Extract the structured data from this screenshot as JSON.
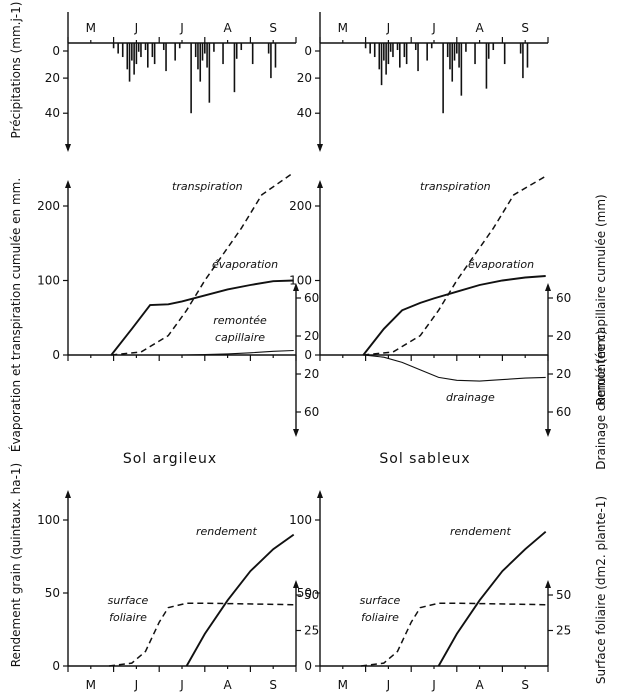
{
  "figure": {
    "soil_left": "Sol argileux",
    "soil_right": "Sol sableux",
    "ylabel_precip": "Précipitations (mm.j-1)",
    "ylabel_et": "Évaporation et transpiration cumulée en mm.",
    "ylabel_capillaire": "Remontée capillaire cumulée (mm)",
    "ylabel_drainage": "Drainage cumulé (mm)",
    "ylabel_rendement": "Rendement grain (quintaux. ha-1)",
    "ylabel_surface": "Surface foliaire (dm2. plante-1)",
    "months": [
      "M",
      "J",
      "J",
      "A",
      "S"
    ]
  },
  "chart_data": [
    {
      "type": "bar",
      "panel": "precipitations-argileux",
      "title": "",
      "ylabel": "Précipitations (mm.j-1)",
      "ylim": [
        0,
        50
      ],
      "y_inverted": true,
      "yticks": [
        20,
        40
      ],
      "x_month_labels": [
        "M",
        "J",
        "J",
        "A",
        "S"
      ],
      "x": [
        1.0,
        1.1,
        1.2,
        1.3,
        1.35,
        1.4,
        1.45,
        1.5,
        1.55,
        1.6,
        1.7,
        1.75,
        1.85,
        1.9,
        2.1,
        2.15,
        2.35,
        2.45,
        2.7,
        2.8,
        2.85,
        2.9,
        2.95,
        3.0,
        3.05,
        3.1,
        3.2,
        3.4,
        3.65,
        3.7,
        3.8,
        4.05,
        4.4,
        4.45,
        4.55
      ],
      "values": [
        3,
        6,
        8,
        15,
        22,
        10,
        18,
        12,
        5,
        8,
        4,
        14,
        8,
        12,
        4,
        16,
        10,
        3,
        40,
        8,
        15,
        22,
        10,
        6,
        14,
        34,
        5,
        12,
        28,
        9,
        4,
        12,
        6,
        20,
        14
      ]
    },
    {
      "type": "bar",
      "panel": "precipitations-sableux",
      "title": "",
      "ylabel": "",
      "ylim": [
        0,
        50
      ],
      "y_inverted": true,
      "yticks": [
        20,
        40
      ],
      "x_month_labels": [
        "M",
        "J",
        "J",
        "A",
        "S"
      ],
      "x": [
        1.0,
        1.1,
        1.2,
        1.3,
        1.35,
        1.4,
        1.45,
        1.5,
        1.55,
        1.6,
        1.7,
        1.75,
        1.85,
        1.9,
        2.1,
        2.15,
        2.35,
        2.45,
        2.7,
        2.8,
        2.85,
        2.9,
        2.95,
        3.0,
        3.05,
        3.1,
        3.2,
        3.4,
        3.65,
        3.7,
        3.8,
        4.05,
        4.4,
        4.45,
        4.55
      ],
      "values": [
        3,
        6,
        8,
        15,
        24,
        10,
        18,
        12,
        5,
        8,
        4,
        14,
        8,
        12,
        4,
        16,
        10,
        3,
        40,
        8,
        15,
        22,
        10,
        6,
        14,
        30,
        5,
        12,
        26,
        9,
        4,
        12,
        6,
        20,
        14
      ]
    },
    {
      "type": "line",
      "panel": "evaporation-transpiration-argileux",
      "title": "",
      "ylabel": "Évaporation et transpiration cumulée en mm.",
      "ylim": [
        -80,
        240
      ],
      "yticks": [
        0,
        100,
        200
      ],
      "right_axis_ticks_up": [
        20,
        60
      ],
      "right_axis_ticks_down": [
        20,
        60
      ],
      "x_month_labels": [
        "M",
        "J",
        "J",
        "A",
        "S"
      ],
      "series": [
        {
          "name": "transpiration",
          "style": "dashed",
          "x": [
            0.95,
            1.6,
            2.2,
            2.6,
            3.0,
            3.4,
            3.8,
            4.25,
            4.95
          ],
          "y": [
            0,
            4,
            26,
            60,
            100,
            135,
            170,
            215,
            245
          ]
        },
        {
          "name": "évaporation",
          "style": "solid",
          "x": [
            0.95,
            1.4,
            1.8,
            2.2,
            2.5,
            3.0,
            3.5,
            4.0,
            4.5,
            4.95
          ],
          "y": [
            0,
            35,
            67,
            68,
            72,
            80,
            88,
            94,
            99,
            100
          ]
        },
        {
          "name": "remontée capillaire",
          "style": "thin",
          "x": [
            1.6,
            2.5,
            3.0,
            3.5,
            4.0,
            4.5,
            4.95
          ],
          "y": [
            0,
            0,
            0.5,
            1.5,
            3,
            5,
            6
          ]
        }
      ]
    },
    {
      "type": "line",
      "panel": "evaporation-transpiration-sableux",
      "title": "",
      "ylabel": "",
      "ylim": [
        -80,
        240
      ],
      "yticks": [
        0,
        100,
        200
      ],
      "right_axis_ticks_up": [
        20,
        60
      ],
      "right_axis_ticks_down": [
        20,
        60
      ],
      "x_month_labels": [
        "M",
        "J",
        "J",
        "A",
        "S"
      ],
      "series": [
        {
          "name": "transpiration",
          "style": "dashed",
          "x": [
            0.95,
            1.6,
            2.2,
            2.6,
            3.0,
            3.4,
            3.8,
            4.25,
            4.95
          ],
          "y": [
            0,
            4,
            26,
            60,
            100,
            135,
            170,
            215,
            240
          ]
        },
        {
          "name": "évaporation",
          "style": "solid",
          "x": [
            0.95,
            1.4,
            1.8,
            2.2,
            2.5,
            3.0,
            3.5,
            4.0,
            4.5,
            4.95
          ],
          "y": [
            0,
            35,
            60,
            70,
            76,
            85,
            94,
            100,
            104,
            106
          ]
        },
        {
          "name": "drainage",
          "style": "thin",
          "x": [
            0.95,
            1.4,
            1.8,
            2.2,
            2.6,
            3.0,
            3.5,
            4.0,
            4.5,
            4.95
          ],
          "y": [
            0,
            -3,
            -10,
            -20,
            -30,
            -34,
            -35,
            -33,
            -31,
            -30
          ]
        }
      ]
    },
    {
      "type": "line",
      "panel": "rendement-surface-argileux",
      "title": "",
      "ylabel": "Rendement grain (quintaux. ha-1)",
      "ylim": [
        0,
        110
      ],
      "yticks": [
        0,
        50,
        100
      ],
      "right_axis_ticks": [
        25,
        50
      ],
      "x_month_labels": [
        "M",
        "J",
        "J",
        "A",
        "S"
      ],
      "series": [
        {
          "name": "rendement",
          "style": "solid",
          "x": [
            2.6,
            3.0,
            3.5,
            4.0,
            4.5,
            4.95
          ],
          "y": [
            0,
            22,
            45,
            65,
            80,
            90
          ]
        },
        {
          "name": "surface foliaire",
          "style": "dashed",
          "x": [
            0.9,
            1.4,
            1.7,
            2.0,
            2.2,
            2.6,
            3.0,
            4.95
          ],
          "y": [
            0,
            2,
            10,
            30,
            40,
            43,
            43,
            42
          ]
        }
      ]
    },
    {
      "type": "line",
      "panel": "rendement-surface-sableux",
      "title": "",
      "ylabel": "",
      "ylim": [
        0,
        110
      ],
      "yticks": [
        0,
        50,
        100
      ],
      "right_axis_ticks": [
        25,
        50
      ],
      "x_month_labels": [
        "M",
        "J",
        "J",
        "A",
        "S"
      ],
      "series": [
        {
          "name": "rendement",
          "style": "solid",
          "x": [
            2.6,
            3.0,
            3.5,
            4.0,
            4.5,
            4.95
          ],
          "y": [
            0,
            22,
            45,
            65,
            80,
            92
          ]
        },
        {
          "name": "surface foliaire",
          "style": "dashed",
          "x": [
            0.9,
            1.4,
            1.7,
            2.0,
            2.2,
            2.6,
            3.0,
            4.95
          ],
          "y": [
            0,
            2,
            10,
            30,
            40,
            43,
            43,
            42
          ]
        }
      ]
    }
  ]
}
